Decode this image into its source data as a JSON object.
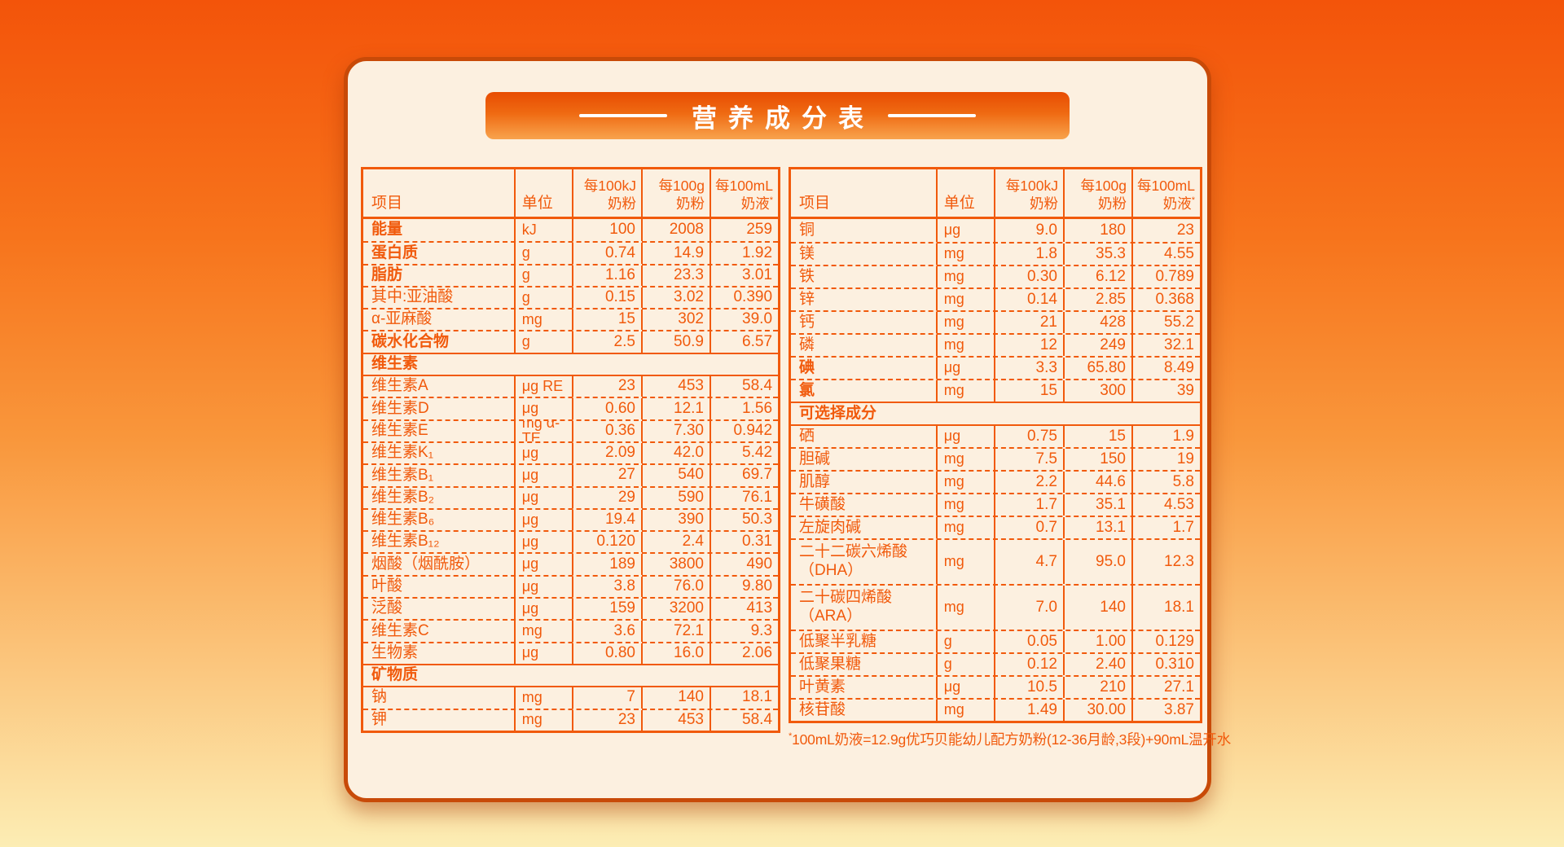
{
  "title": "营养成分表",
  "colors": {
    "accent": "#f15a0c",
    "card_bg": "#fcf0e0",
    "banner_top": "#e84c02",
    "banner_bottom": "#f8a34d",
    "page_top": "#f3540a",
    "page_bottom": "#fcedb4",
    "title_text": "#ffffff"
  },
  "columns": {
    "item": "项目",
    "unit": "单位",
    "kj1": "每100kJ",
    "kj2": "奶粉",
    "g1": "每100g",
    "g2": "奶粉",
    "ml1": "每100mL",
    "ml2": "奶液",
    "ml_sup": "*"
  },
  "left_table": {
    "rows": [
      {
        "label": "能量",
        "bold": true,
        "unit": "kJ",
        "v1": "100",
        "v2": "2008",
        "v3": "259"
      },
      {
        "label": "蛋白质",
        "bold": true,
        "unit": "g",
        "v1": "0.74",
        "v2": "14.9",
        "v3": "1.92"
      },
      {
        "label": "脂肪",
        "bold": true,
        "unit": "g",
        "v1": "1.16",
        "v2": "23.3",
        "v3": "3.01"
      },
      {
        "label": "其中:亚油酸",
        "unit": "g",
        "v1": "0.15",
        "v2": "3.02",
        "v3": "0.390"
      },
      {
        "label": "α-亚麻酸",
        "unit": "mg",
        "v1": "15",
        "v2": "302",
        "v3": "39.0"
      },
      {
        "label": "碳水化合物",
        "bold": true,
        "unit": "g",
        "v1": "2.5",
        "v2": "50.9",
        "v3": "6.57"
      },
      {
        "section": true,
        "label": "维生素"
      },
      {
        "label": "维生素A",
        "unit": "μg RE",
        "v1": "23",
        "v2": "453",
        "v3": "58.4"
      },
      {
        "label": "维生素D",
        "unit": "μg",
        "v1": "0.60",
        "v2": "12.1",
        "v3": "1.56"
      },
      {
        "label": "维生素E",
        "unit": "mg α-TE",
        "v1": "0.36",
        "v2": "7.30",
        "v3": "0.942"
      },
      {
        "label": "维生素K₁",
        "unit": "μg",
        "v1": "2.09",
        "v2": "42.0",
        "v3": "5.42"
      },
      {
        "label": "维生素B₁",
        "unit": "μg",
        "v1": "27",
        "v2": "540",
        "v3": "69.7"
      },
      {
        "label": "维生素B₂",
        "unit": "μg",
        "v1": "29",
        "v2": "590",
        "v3": "76.1"
      },
      {
        "label": "维生素B₆",
        "unit": "μg",
        "v1": "19.4",
        "v2": "390",
        "v3": "50.3"
      },
      {
        "label": "维生素B₁₂",
        "unit": "μg",
        "v1": "0.120",
        "v2": "2.4",
        "v3": "0.31"
      },
      {
        "label": "烟酸（烟酰胺）",
        "unit": "μg",
        "v1": "189",
        "v2": "3800",
        "v3": "490"
      },
      {
        "label": "叶酸",
        "unit": "μg",
        "v1": "3.8",
        "v2": "76.0",
        "v3": "9.80"
      },
      {
        "label": "泛酸",
        "unit": "μg",
        "v1": "159",
        "v2": "3200",
        "v3": "413"
      },
      {
        "label": "维生素C",
        "unit": "mg",
        "v1": "3.6",
        "v2": "72.1",
        "v3": "9.3"
      },
      {
        "label": "生物素",
        "unit": "μg",
        "v1": "0.80",
        "v2": "16.0",
        "v3": "2.06"
      },
      {
        "section": true,
        "label": "矿物质"
      },
      {
        "label": "钠",
        "unit": "mg",
        "v1": "7",
        "v2": "140",
        "v3": "18.1"
      },
      {
        "label": "钾",
        "unit": "mg",
        "v1": "23",
        "v2": "453",
        "v3": "58.4"
      }
    ]
  },
  "right_table": {
    "rows": [
      {
        "label": "铜",
        "unit": "μg",
        "v1": "9.0",
        "v2": "180",
        "v3": "23"
      },
      {
        "label": "镁",
        "unit": "mg",
        "v1": "1.8",
        "v2": "35.3",
        "v3": "4.55"
      },
      {
        "label": "铁",
        "unit": "mg",
        "v1": "0.30",
        "v2": "6.12",
        "v3": "0.789"
      },
      {
        "label": "锌",
        "unit": "mg",
        "v1": "0.14",
        "v2": "2.85",
        "v3": "0.368"
      },
      {
        "label": "钙",
        "unit": "mg",
        "v1": "21",
        "v2": "428",
        "v3": "55.2"
      },
      {
        "label": "磷",
        "unit": "mg",
        "v1": "12",
        "v2": "249",
        "v3": "32.1"
      },
      {
        "label": "碘",
        "bold": true,
        "unit": "μg",
        "v1": "3.3",
        "v2": "65.80",
        "v3": "8.49"
      },
      {
        "label": "氯",
        "bold": true,
        "unit": "mg",
        "v1": "15",
        "v2": "300",
        "v3": "39"
      },
      {
        "section": true,
        "label": "可选择成分"
      },
      {
        "label": "硒",
        "unit": "μg",
        "v1": "0.75",
        "v2": "15",
        "v3": "1.9"
      },
      {
        "label": "胆碱",
        "unit": "mg",
        "v1": "7.5",
        "v2": "150",
        "v3": "19"
      },
      {
        "label": "肌醇",
        "unit": "mg",
        "v1": "2.2",
        "v2": "44.6",
        "v3": "5.8"
      },
      {
        "label": "牛磺酸",
        "unit": "mg",
        "v1": "1.7",
        "v2": "35.1",
        "v3": "4.53"
      },
      {
        "label": "左旋肉碱",
        "unit": "mg",
        "v1": "0.7",
        "v2": "13.1",
        "v3": "1.7"
      },
      {
        "label": "二十二碳六烯酸\n（DHA）",
        "tall": true,
        "unit": "mg",
        "v1": "4.7",
        "v2": "95.0",
        "v3": "12.3"
      },
      {
        "label": "二十碳四烯酸\n（ARA）",
        "tall": true,
        "unit": "mg",
        "v1": "7.0",
        "v2": "140",
        "v3": "18.1"
      },
      {
        "label": "低聚半乳糖",
        "unit": "g",
        "v1": "0.05",
        "v2": "1.00",
        "v3": "0.129"
      },
      {
        "label": "低聚果糖",
        "unit": "g",
        "v1": "0.12",
        "v2": "2.40",
        "v3": "0.310"
      },
      {
        "label": "叶黄素",
        "unit": "μg",
        "v1": "10.5",
        "v2": "210",
        "v3": "27.1"
      },
      {
        "label": "核苷酸",
        "unit": "mg",
        "v1": "1.49",
        "v2": "30.00",
        "v3": "3.87"
      }
    ]
  },
  "footnote": {
    "sup": "*",
    "text": "100mL奶液=12.9g优巧贝能幼儿配方奶粉(12-36月龄,3段)+90mL温开水"
  }
}
